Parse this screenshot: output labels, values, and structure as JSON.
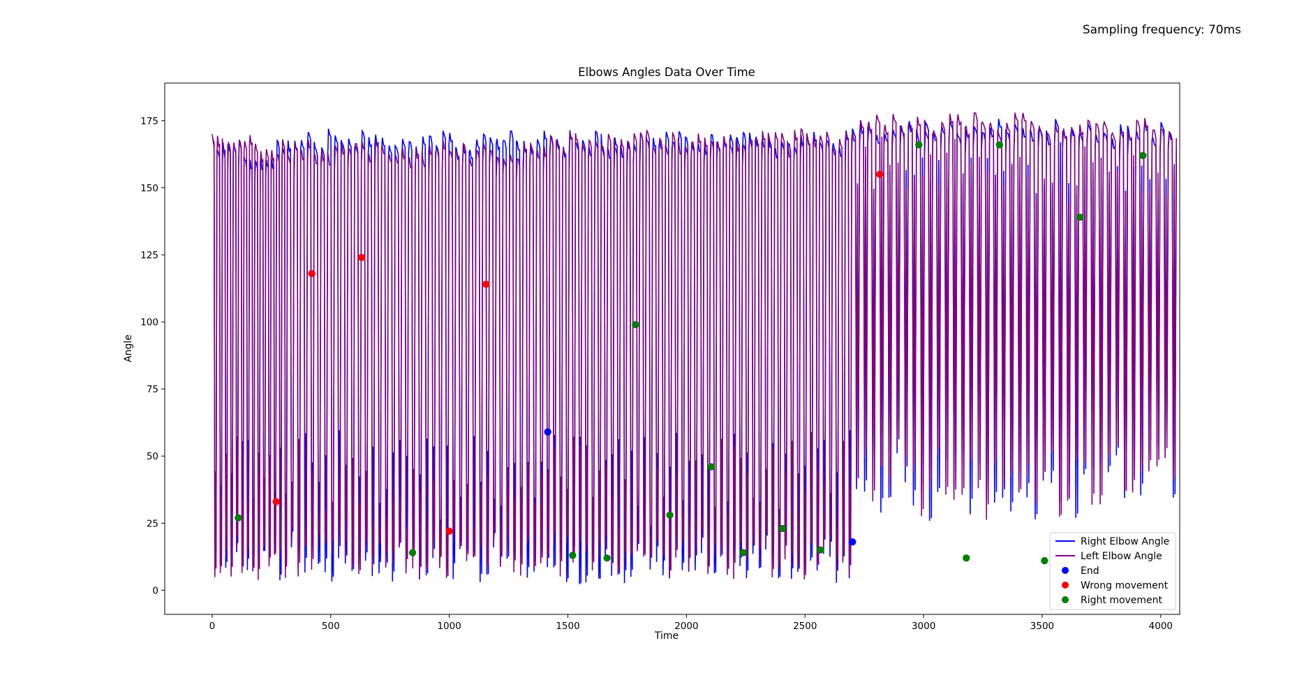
{
  "annotation": "Sampling frequency: 70ms",
  "chart_data": {
    "type": "line",
    "title": "Elbows Angles Data Over Time",
    "xlabel": "Time",
    "ylabel": "Angle",
    "xlim": [
      -200,
      4080
    ],
    "ylim": [
      -9,
      189
    ],
    "xticks": [
      0,
      500,
      1000,
      1500,
      2000,
      2500,
      3000,
      3500,
      4000
    ],
    "yticks": [
      0,
      25,
      50,
      75,
      100,
      125,
      150,
      175
    ],
    "grid": false,
    "legend_position": "lower-right",
    "colors": {
      "right": "#0000ff",
      "left": "#800080",
      "end": "#0000ff",
      "wrong": "#ff0000",
      "correct": "#008000"
    },
    "series": [
      {
        "name": "Right Elbow Angle",
        "color": "#0000ff",
        "segments": [
          {
            "x_start": 0,
            "x_end": 320,
            "cycles": 14,
            "high": 168,
            "low": 3
          },
          {
            "x_start": 320,
            "x_end": 1400,
            "cycles": 38,
            "high": 172,
            "low": 3
          },
          {
            "x_start": 1400,
            "x_end": 2700,
            "cycles": 48,
            "high": 172,
            "low": 2
          },
          {
            "x_start": 2700,
            "x_end": 4070,
            "cycles": 40,
            "high": 176,
            "low": 24
          }
        ]
      },
      {
        "name": "Left Elbow Angle",
        "color": "#800080",
        "segments": [
          {
            "x_start": 0,
            "x_end": 320,
            "cycles": 14,
            "high": 170,
            "low": 2
          },
          {
            "x_start": 320,
            "x_end": 1400,
            "cycles": 38,
            "high": 168,
            "low": 4
          },
          {
            "x_start": 1400,
            "x_end": 2700,
            "cycles": 48,
            "high": 172,
            "low": 4
          },
          {
            "x_start": 2700,
            "x_end": 4070,
            "cycles": 40,
            "high": 178,
            "low": 25
          }
        ]
      }
    ],
    "markers": [
      {
        "name": "End",
        "color": "#0000ff",
        "points": [
          [
            1415,
            59
          ],
          [
            2700,
            18
          ]
        ]
      },
      {
        "name": "Wrong movement",
        "color": "#ff0000",
        "points": [
          [
            270,
            33
          ],
          [
            420,
            118
          ],
          [
            630,
            124
          ],
          [
            1000,
            22
          ],
          [
            1155,
            114
          ],
          [
            2815,
            155
          ]
        ]
      },
      {
        "name": "Right movement",
        "color": "#008000",
        "points": [
          [
            110,
            27
          ],
          [
            845,
            14
          ],
          [
            1520,
            13
          ],
          [
            1665,
            12
          ],
          [
            1785,
            99
          ],
          [
            1930,
            28
          ],
          [
            2105,
            46
          ],
          [
            2240,
            14
          ],
          [
            2405,
            23
          ],
          [
            2565,
            15
          ],
          [
            2980,
            166
          ],
          [
            3180,
            12
          ],
          [
            3320,
            166
          ],
          [
            3510,
            11
          ],
          [
            3660,
            139
          ],
          [
            3925,
            162
          ]
        ]
      }
    ],
    "legend": [
      "Right Elbow Angle",
      "Left Elbow Angle",
      "End",
      "Wrong movement",
      "Right movement"
    ]
  }
}
